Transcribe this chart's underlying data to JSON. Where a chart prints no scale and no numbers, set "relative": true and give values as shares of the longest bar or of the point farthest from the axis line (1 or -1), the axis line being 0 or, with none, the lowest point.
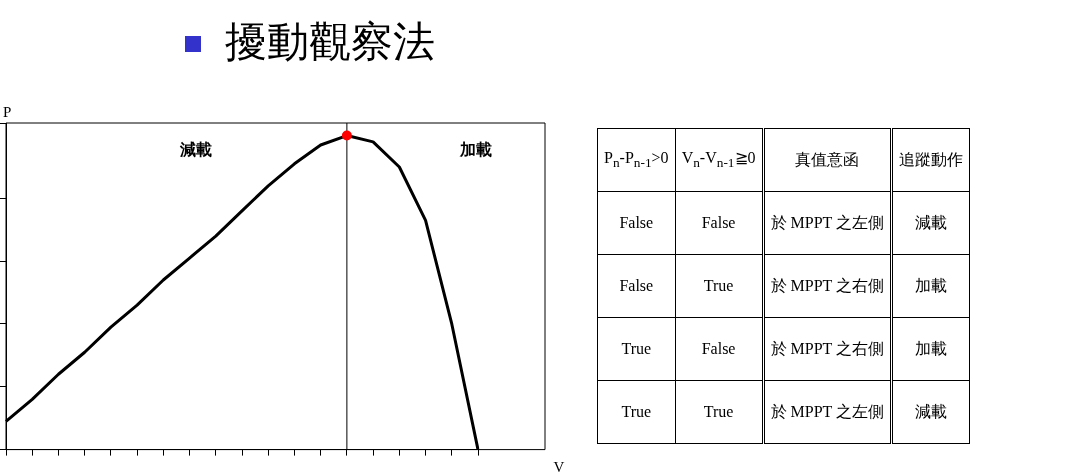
{
  "chart_data": [
    {
      "type": "line",
      "title": "擾動觀察法",
      "xlabel": "V",
      "ylabel": "P",
      "relative": true,
      "categories": [
        null,
        null,
        null,
        null,
        null,
        null,
        null,
        null,
        null,
        null,
        null,
        null,
        null,
        null,
        null,
        null,
        null,
        null,
        null
      ],
      "series": [
        {
          "type": "line",
          "color": "#000000",
          "values": [
            0.09,
            0.16,
            0.24,
            0.31,
            0.39,
            0.46,
            0.54,
            0.61,
            0.68,
            0.76,
            0.84,
            0.91,
            0.97,
            1.0,
            0.98,
            0.9,
            0.73,
            0.4,
            0
          ],
          "colors": [
            "#000000",
            "#000000",
            "#000000",
            "#000000",
            "#000000",
            "#000000",
            "#000000",
            "#000000",
            "#000000",
            "#000000",
            "#000000",
            "#000000",
            "#000000",
            "#ff0000",
            "#000000",
            "#000000",
            "#000000",
            "#000000",
            "#000000"
          ]
        }
      ],
      "annotations": [
        "減載",
        "加載"
      ],
      "marker": "none",
      "grid": false,
      "legend": false
    },
    {
      "type": "other",
      "categories": [
        "P$_{n}$-P$_{n-1}$>0",
        "V$_{n}$-V$_{n-1}$≧0",
        "真值意函",
        "追蹤動作"
      ],
      "annotations": [
        "False",
        "False",
        "於 MPPT 之左側",
        "減載",
        "False",
        "True",
        "於 MPPT 之右側",
        "加載",
        "True",
        "False",
        "於 MPPT 之右側",
        "加載",
        "True",
        "True",
        "於 MPPT 之左側",
        "減載"
      ]
    }
  ]
}
